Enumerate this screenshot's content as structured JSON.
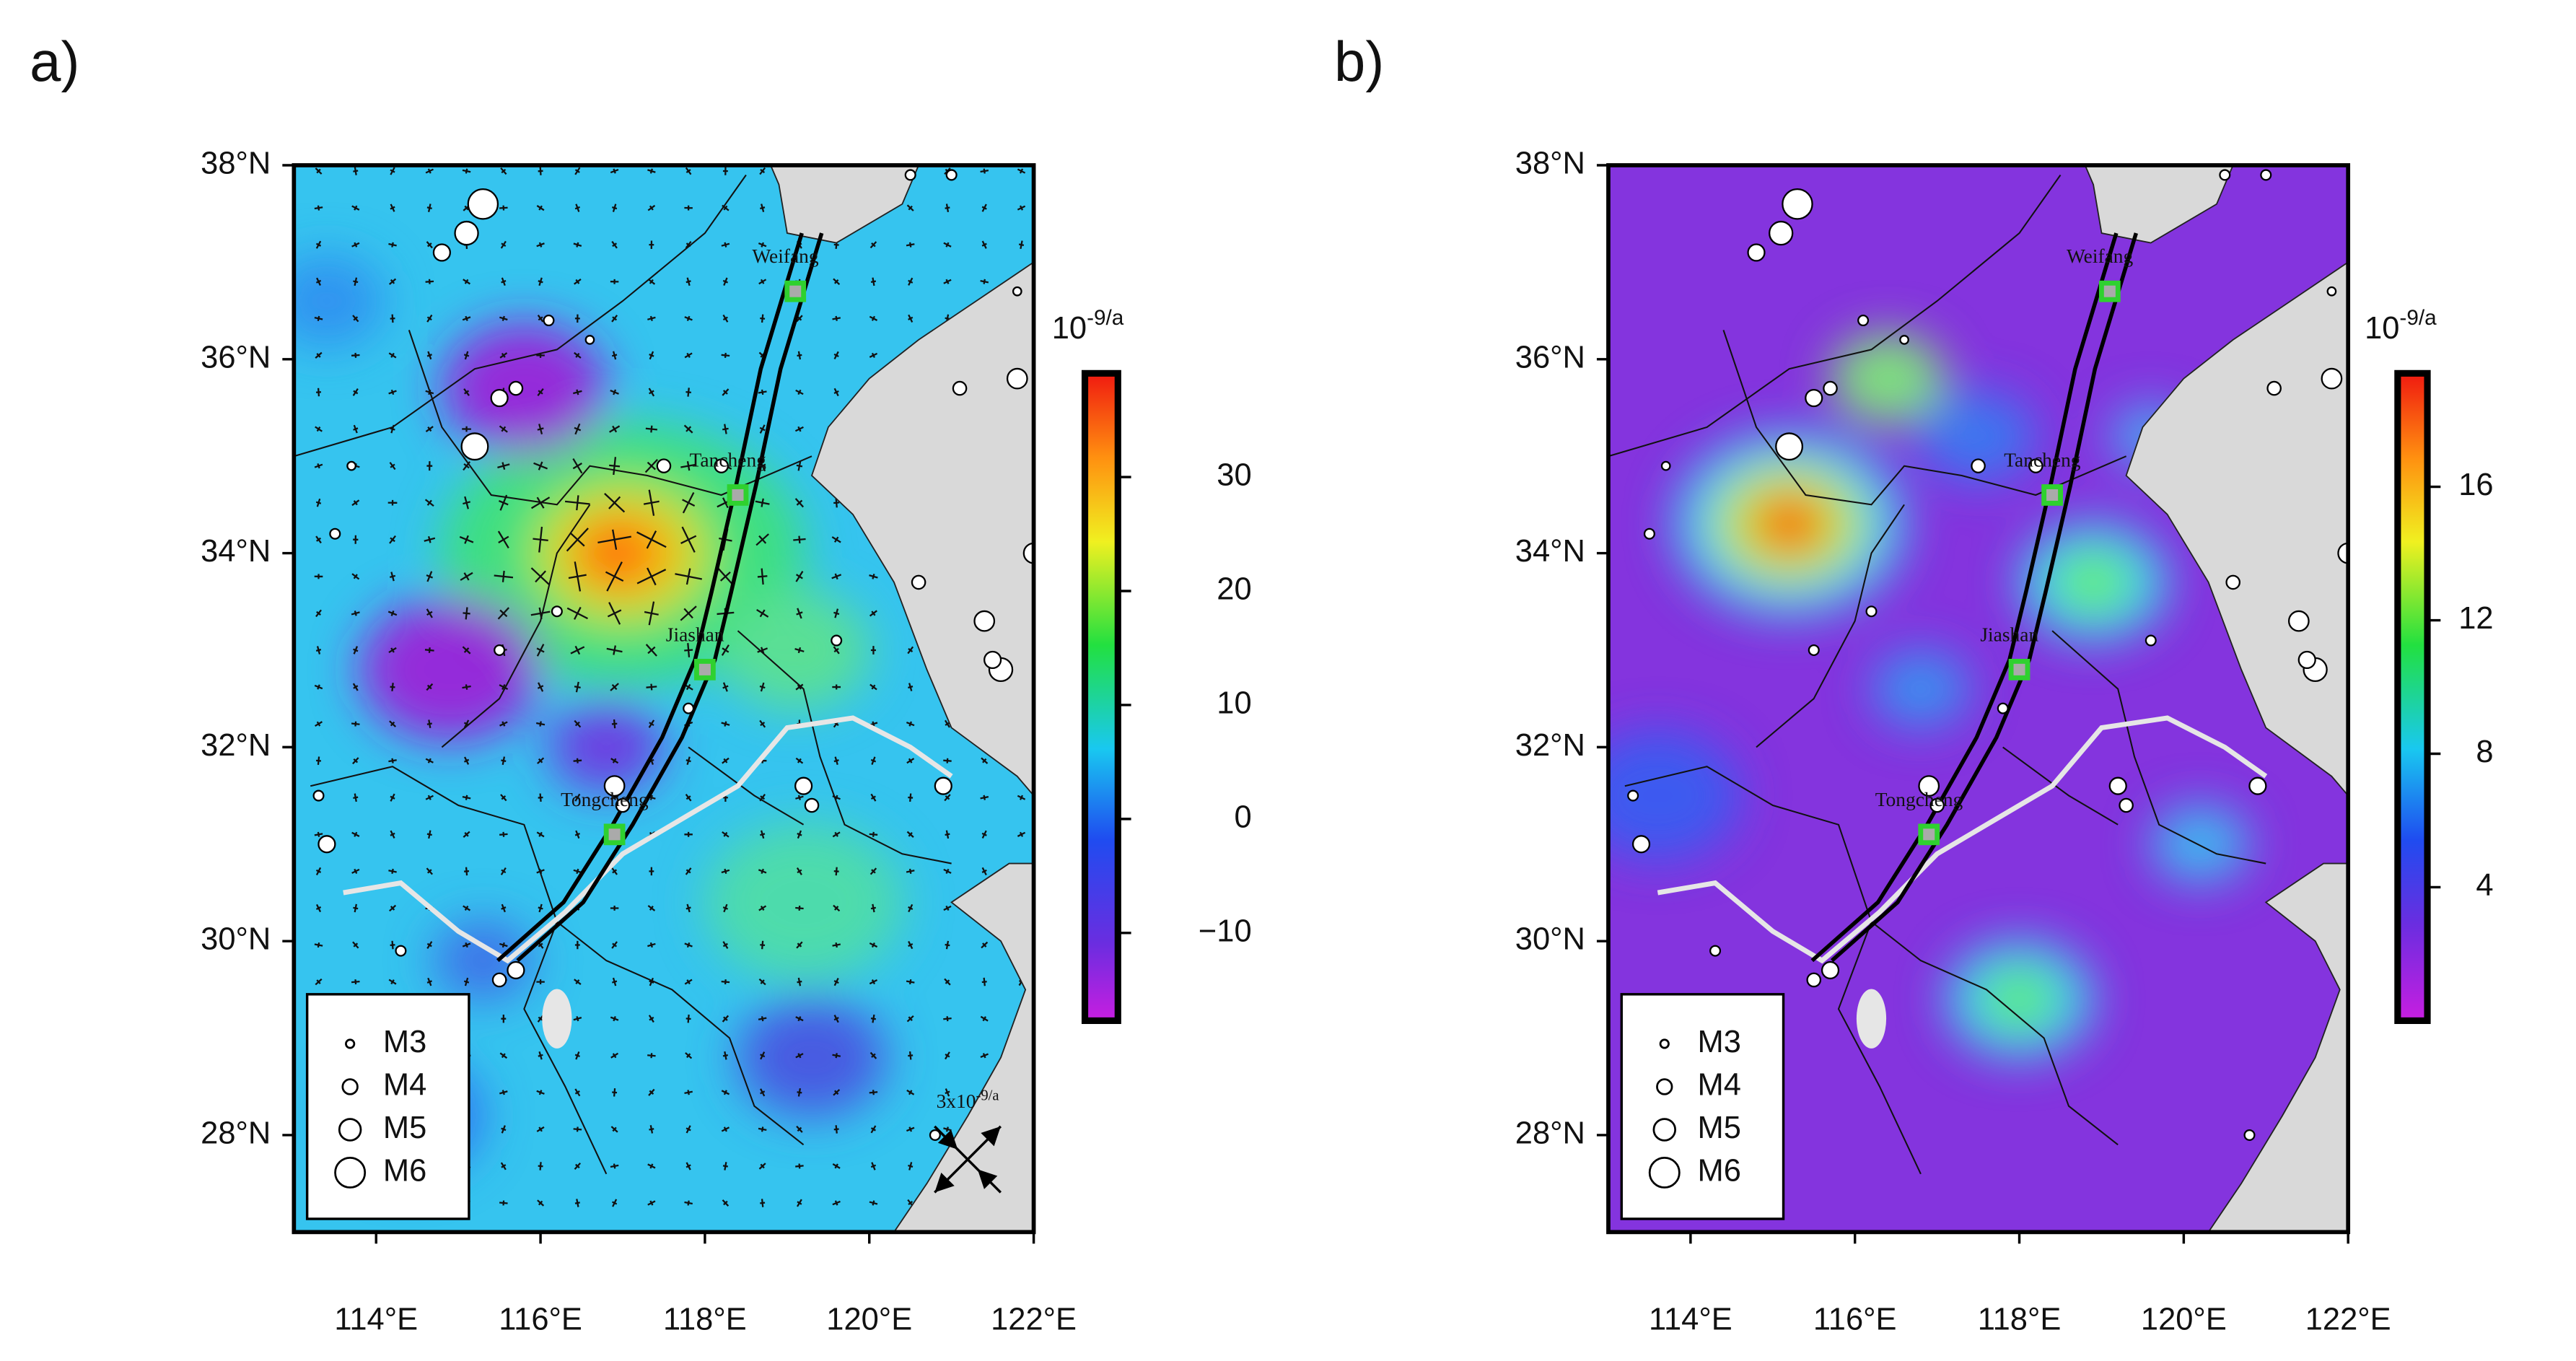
{
  "panels": [
    {
      "label": "a)",
      "extent": {
        "lon": [
          113,
          122
        ],
        "lat": [
          27,
          38
        ]
      },
      "lat_ticks": [
        {
          "value": 38,
          "label": "38°N"
        },
        {
          "value": 36,
          "label": "36°N"
        },
        {
          "value": 34,
          "label": "34°N"
        },
        {
          "value": 32,
          "label": "32°N"
        },
        {
          "value": 30,
          "label": "30°N"
        },
        {
          "value": 28,
          "label": "28°N"
        }
      ],
      "lon_ticks": [
        {
          "value": 114,
          "label": "114°E"
        },
        {
          "value": 116,
          "label": "116°E"
        },
        {
          "value": 118,
          "label": "118°E"
        },
        {
          "value": 120,
          "label": "120°E"
        },
        {
          "value": 122,
          "label": "122°E"
        }
      ],
      "colorbar": {
        "unit": {
          "base": "10",
          "exponent": "-9/a"
        },
        "range": [
          -17.7,
          39.1
        ],
        "ticks": [
          30,
          20,
          10,
          0,
          {
            "value": -10,
            "label": "−10"
          }
        ]
      },
      "legend": [
        "M3",
        "M4",
        "M5",
        "M6"
      ],
      "cities": [
        {
          "name": "Weifang",
          "lon": 119.1,
          "lat": 36.7
        },
        {
          "name": "Tancheng",
          "lon": 118.4,
          "lat": 34.6
        },
        {
          "name": "Jiashan",
          "lon": 118.0,
          "lat": 32.8
        },
        {
          "name": "Tongcheng",
          "lon": 116.9,
          "lat": 31.1
        }
      ],
      "scale_label": {
        "base": "3x10",
        "exponent": "-9/a"
      }
    },
    {
      "label": "b)",
      "extent": {
        "lon": [
          113,
          122
        ],
        "lat": [
          27,
          38
        ]
      },
      "lat_ticks": [
        {
          "value": 38,
          "label": "38°N"
        },
        {
          "value": 36,
          "label": "36°N"
        },
        {
          "value": 34,
          "label": "34°N"
        },
        {
          "value": 32,
          "label": "32°N"
        },
        {
          "value": 30,
          "label": "30°N"
        },
        {
          "value": 28,
          "label": "28°N"
        }
      ],
      "lon_ticks": [
        {
          "value": 114,
          "label": "114°E"
        },
        {
          "value": 116,
          "label": "116°E"
        },
        {
          "value": 118,
          "label": "118°E"
        },
        {
          "value": 120,
          "label": "120°E"
        },
        {
          "value": 122,
          "label": "122°E"
        }
      ],
      "colorbar": {
        "unit": {
          "base": "10",
          "exponent": "-9/a"
        },
        "range": [
          0,
          19.4
        ],
        "ticks": [
          16,
          12,
          8,
          4
        ]
      },
      "legend": [
        "M3",
        "M4",
        "M5",
        "M6"
      ],
      "cities": [
        {
          "name": "Weifang",
          "lon": 119.1,
          "lat": 36.7
        },
        {
          "name": "Tancheng",
          "lon": 118.4,
          "lat": 34.6
        },
        {
          "name": "Jiashan",
          "lon": 118.0,
          "lat": 32.8
        },
        {
          "name": "Tongcheng",
          "lon": 116.9,
          "lat": 31.1
        }
      ]
    }
  ]
}
